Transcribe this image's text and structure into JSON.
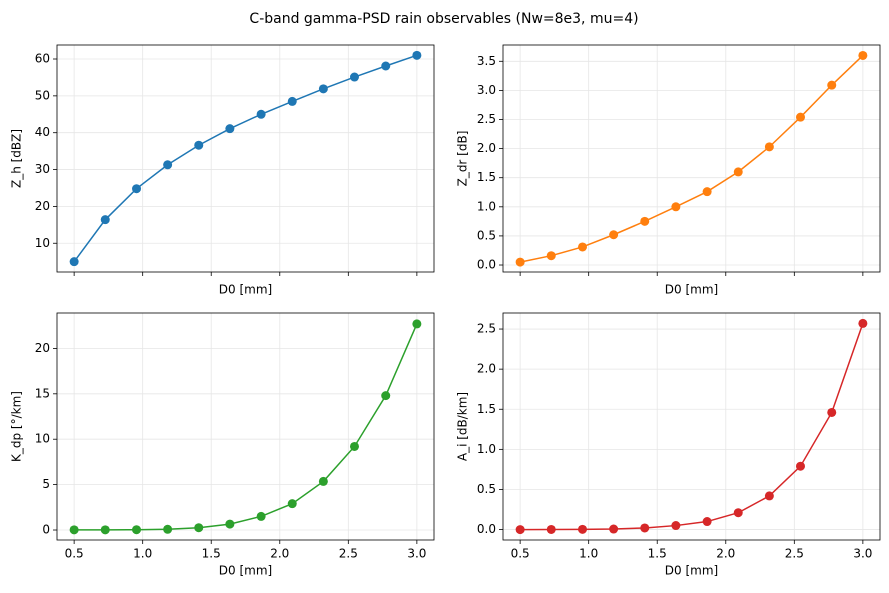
{
  "title": "C-band gamma-PSD rain observables (Nw=8e3, mu=4)",
  "chart_data": [
    {
      "type": "line",
      "xlabel": "D0 [mm]",
      "ylabel": "Z_h [dBZ]",
      "color": "#1f77b4",
      "grid": true,
      "xtick_labels": false,
      "x": [
        0.5,
        0.727,
        0.955,
        1.182,
        1.409,
        1.636,
        1.864,
        2.091,
        2.318,
        2.545,
        2.773,
        3.0
      ],
      "values": [
        5,
        16.4,
        24.8,
        31.3,
        36.6,
        41.1,
        45.0,
        48.5,
        51.9,
        55.1,
        58.1,
        61.0
      ],
      "xlim": [
        0.375,
        3.125
      ],
      "xticks": [
        0.5,
        1,
        1.5,
        2,
        2.5,
        3
      ],
      "ylim": [
        2.2,
        63.8
      ],
      "yticks": [
        10,
        20,
        30,
        40,
        50,
        60
      ]
    },
    {
      "type": "line",
      "xlabel": "D0 [mm]",
      "ylabel": "Z_dr [dB]",
      "color": "#ff7f0e",
      "grid": true,
      "xtick_labels": false,
      "x": [
        0.5,
        0.727,
        0.955,
        1.182,
        1.409,
        1.636,
        1.864,
        2.091,
        2.318,
        2.545,
        2.773,
        3.0
      ],
      "values": [
        0.05,
        0.16,
        0.31,
        0.52,
        0.75,
        1.0,
        1.26,
        1.6,
        2.03,
        2.54,
        3.09,
        3.6
      ],
      "xlim": [
        0.375,
        3.125
      ],
      "xticks": [
        0.5,
        1,
        1.5,
        2,
        2.5,
        3
      ],
      "ylim": [
        -0.12,
        3.78
      ],
      "yticks": [
        {
          "value": 0,
          "label": "0.0"
        },
        0.5,
        {
          "value": 1,
          "label": "1.0"
        },
        1.5,
        {
          "value": 2,
          "label": "2.0"
        },
        2.5,
        {
          "value": 3,
          "label": "3.0"
        },
        3.5
      ]
    },
    {
      "type": "line",
      "xlabel": "D0 [mm]",
      "ylabel": "K_dp [°/km]",
      "color": "#2ca02c",
      "grid": true,
      "xtick_labels": true,
      "x": [
        0.5,
        0.727,
        0.955,
        1.182,
        1.409,
        1.636,
        1.864,
        2.091,
        2.318,
        2.545,
        2.773,
        3.0
      ],
      "values": [
        0.02,
        0.02,
        0.03,
        0.08,
        0.25,
        0.65,
        1.5,
        2.9,
        5.35,
        9.2,
        14.8,
        22.7
      ],
      "xlim": [
        0.375,
        3.125
      ],
      "xticks": [
        0.5,
        {
          "value": 1,
          "label": "1.0"
        },
        1.5,
        {
          "value": 2,
          "label": "2.0"
        },
        2.5,
        {
          "value": 3,
          "label": "3.0"
        }
      ],
      "ylim": [
        -1.1,
        23.9
      ],
      "yticks": [
        0,
        5,
        10,
        15,
        20
      ]
    },
    {
      "type": "line",
      "xlabel": "D0 [mm]",
      "ylabel": "A_i [dB/km]",
      "color": "#d62728",
      "grid": true,
      "xtick_labels": true,
      "x": [
        0.5,
        0.727,
        0.955,
        1.182,
        1.409,
        1.636,
        1.864,
        2.091,
        2.318,
        2.545,
        2.773,
        3.0
      ],
      "values": [
        0.0,
        0.001,
        0.003,
        0.007,
        0.02,
        0.05,
        0.1,
        0.21,
        0.42,
        0.79,
        1.46,
        2.57
      ],
      "xlim": [
        0.375,
        3.125
      ],
      "xticks": [
        0.5,
        {
          "value": 1,
          "label": "1.0"
        },
        1.5,
        {
          "value": 2,
          "label": "2.0"
        },
        2.5,
        {
          "value": 3,
          "label": "3.0"
        }
      ],
      "ylim": [
        -0.13,
        2.7
      ],
      "yticks": [
        {
          "value": 0,
          "label": "0.0"
        },
        0.5,
        {
          "value": 1,
          "label": "1.0"
        },
        1.5,
        {
          "value": 2,
          "label": "2.0"
        },
        2.5
      ]
    }
  ]
}
